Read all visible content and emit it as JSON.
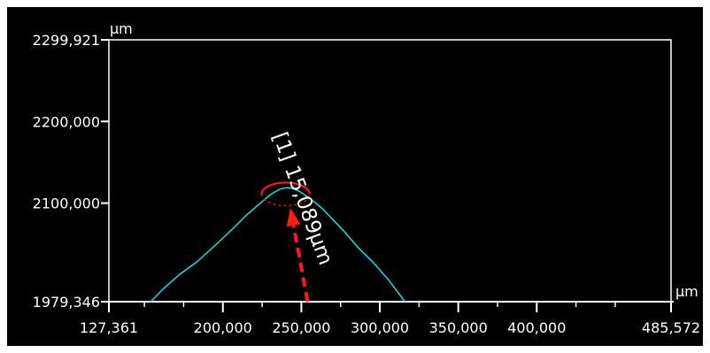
{
  "chart_data": {
    "type": "line",
    "title": "",
    "xunit": "µm",
    "yunit": "µm",
    "xlim": [
      127361,
      485572
    ],
    "ylim": [
      1979346,
      2299921
    ],
    "x_ticks": [
      {
        "value": 127361,
        "label": "127,361"
      },
      {
        "value": 200000,
        "label": "200,000"
      },
      {
        "value": 250000,
        "label": "250,000"
      },
      {
        "value": 300000,
        "label": "300,000"
      },
      {
        "value": 350000,
        "label": "350,000"
      },
      {
        "value": 400000,
        "label": "400,000"
      },
      {
        "value": 485572,
        "label": "485,572"
      }
    ],
    "y_ticks": [
      {
        "value": 1979346,
        "label": "1979,346"
      },
      {
        "value": 2100000,
        "label": "2100,000"
      },
      {
        "value": 2200000,
        "label": "2200,000"
      },
      {
        "value": 2299921,
        "label": "2299,921"
      }
    ],
    "x_minor_ticks": [
      150000,
      175000,
      225000,
      275000,
      325000,
      375000,
      425000,
      450000
    ],
    "series": [
      {
        "color": "#1fd3d3",
        "x": [
          154000,
          162000,
          172000,
          184000,
          196000,
          206000,
          216000,
          224000,
          230000,
          236000,
          241000,
          245000,
          250000,
          256000,
          263000,
          270000,
          278000,
          286000,
          296000,
          306000,
          316000
        ],
        "y": [
          1979346,
          1995000,
          2012000,
          2029000,
          2050000,
          2068000,
          2087000,
          2100000,
          2110000,
          2117000,
          2119000,
          2118000,
          2113000,
          2105000,
          2094000,
          2080000,
          2064000,
          2046000,
          2027000,
          2005000,
          1979346
        ]
      }
    ],
    "annotations": [
      {
        "label": "[1] 15,089µm",
        "color": "#ff1a1a",
        "arrow_from": {
          "x": 254000,
          "y": 1979346
        },
        "arrow_to": {
          "x": 243000,
          "y": 2094000
        },
        "marker_center": {
          "x": 240000,
          "y": 2111000
        }
      }
    ],
    "colors": {
      "background": "#000000",
      "axis": "#ffffff",
      "curve": "#1fd3d3",
      "annotation": "#ff1a1a"
    }
  }
}
